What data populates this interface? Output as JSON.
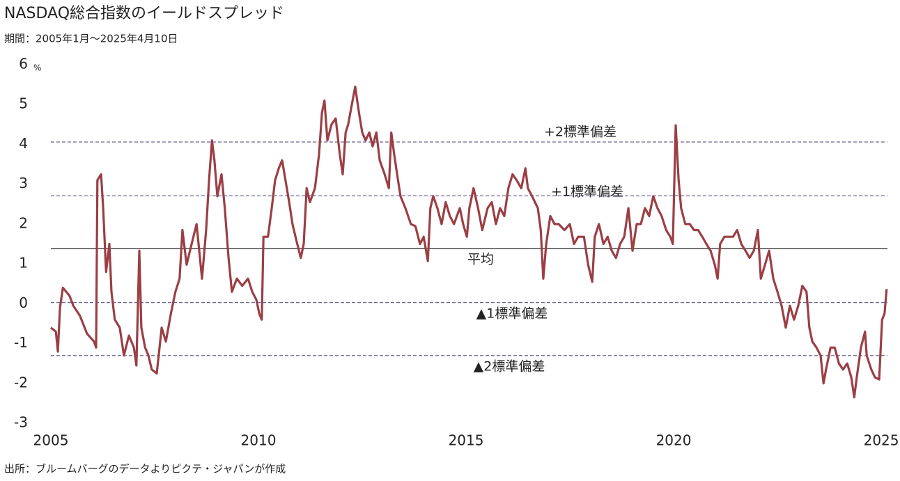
{
  "chart_data": {
    "type": "line",
    "title": "NASDAQ総合指数のイールドスプレッド",
    "subtitle": "期間：2005年1月～2025年4月10日",
    "y_unit": "%",
    "source": "出所：ブルームバーグのデータよりピクテ・ジャパンが作成",
    "xlim": [
      2005,
      2025.15
    ],
    "xticks": [
      2005,
      2010,
      2015,
      2020,
      2025
    ],
    "ylim": [
      -3,
      6
    ],
    "yticks": [
      -3,
      -2,
      -1,
      0,
      1,
      2,
      3,
      4,
      5,
      6
    ],
    "negative_tick_color": "#e00000",
    "reference_lines": [
      {
        "label": "+2標準偏差",
        "value": 4.06,
        "color": "#6a6490",
        "dashed": true
      },
      {
        "label": "+1標準偏差",
        "value": 2.71,
        "color": "#6a6490",
        "dashed": true
      },
      {
        "label": "平均",
        "value": 1.38,
        "color": "#222222",
        "dashed": false
      },
      {
        "label": "▲1標準偏差",
        "value": 0.03,
        "color": "#6a6490",
        "dashed": true
      },
      {
        "label": "▲2標準偏差",
        "value": -1.3,
        "color": "#6a6490",
        "dashed": true
      }
    ],
    "series": [
      {
        "color": "#9b3f45",
        "x": [
          2005.0,
          2005.12,
          2005.17,
          2005.22,
          2005.29,
          2005.45,
          2005.54,
          2005.7,
          2005.87,
          2006.04,
          2006.09,
          2006.12,
          2006.21,
          2006.26,
          2006.33,
          2006.41,
          2006.46,
          2006.54,
          2006.66,
          2006.76,
          2006.88,
          2007.0,
          2007.06,
          2007.13,
          2007.18,
          2007.27,
          2007.35,
          2007.43,
          2007.55,
          2007.67,
          2007.77,
          2007.89,
          2008.0,
          2008.1,
          2008.17,
          2008.27,
          2008.39,
          2008.51,
          2008.64,
          2008.74,
          2008.81,
          2008.88,
          2008.94,
          2009.01,
          2009.11,
          2009.19,
          2009.28,
          2009.36,
          2009.48,
          2009.61,
          2009.75,
          2009.85,
          2009.95,
          2010.02,
          2010.08,
          2010.12,
          2010.23,
          2010.32,
          2010.4,
          2010.49,
          2010.57,
          2010.65,
          2010.74,
          2010.82,
          2010.91,
          2011.02,
          2011.09,
          2011.16,
          2011.24,
          2011.36,
          2011.46,
          2011.53,
          2011.59,
          2011.66,
          2011.76,
          2011.86,
          2011.96,
          2012.03,
          2012.1,
          2012.16,
          2012.25,
          2012.33,
          2012.42,
          2012.5,
          2012.58,
          2012.67,
          2012.75,
          2012.84,
          2012.92,
          2013.04,
          2013.14,
          2013.2,
          2013.27,
          2013.34,
          2013.42,
          2013.54,
          2013.67,
          2013.78,
          2013.89,
          2013.98,
          2014.08,
          2014.14,
          2014.21,
          2014.31,
          2014.41,
          2014.51,
          2014.61,
          2014.71,
          2014.85,
          2014.93,
          2015.02,
          2015.08,
          2015.18,
          2015.29,
          2015.39,
          2015.52,
          2015.62,
          2015.72,
          2015.82,
          2015.92,
          2016.02,
          2016.12,
          2016.22,
          2016.33,
          2016.43,
          2016.49,
          2016.59,
          2016.73,
          2016.8,
          2016.86,
          2016.93,
          2017.03,
          2017.13,
          2017.23,
          2017.37,
          2017.5,
          2017.6,
          2017.7,
          2017.84,
          2017.94,
          2018.04,
          2018.1,
          2018.2,
          2018.31,
          2018.41,
          2018.51,
          2018.61,
          2018.71,
          2018.81,
          2018.91,
          2019.01,
          2019.11,
          2019.21,
          2019.31,
          2019.41,
          2019.51,
          2019.61,
          2019.71,
          2019.82,
          2019.92,
          2019.98,
          2020.05,
          2020.12,
          2020.18,
          2020.28,
          2020.39,
          2020.49,
          2020.59,
          2020.69,
          2020.79,
          2020.89,
          2020.99,
          2021.06,
          2021.12,
          2021.22,
          2021.33,
          2021.43,
          2021.53,
          2021.63,
          2021.73,
          2021.83,
          2021.93,
          2022.03,
          2022.1,
          2022.2,
          2022.3,
          2022.4,
          2022.5,
          2022.6,
          2022.7,
          2022.8,
          2022.9,
          2023.0,
          2023.1,
          2023.2,
          2023.27,
          2023.34,
          2023.44,
          2023.54,
          2023.61,
          2023.67,
          2023.78,
          2023.88,
          2023.98,
          2024.08,
          2024.18,
          2024.28,
          2024.35,
          2024.41,
          2024.51,
          2024.61,
          2024.65,
          2024.76,
          2024.85,
          2024.95,
          2025.02,
          2025.08,
          2025.13
        ],
        "values": [
          -0.6,
          -0.7,
          -1.2,
          -0.1,
          0.4,
          0.2,
          -0.05,
          -0.3,
          -0.75,
          -0.95,
          -1.1,
          3.1,
          3.25,
          2.4,
          0.8,
          1.5,
          0.3,
          -0.4,
          -0.6,
          -1.3,
          -0.8,
          -1.1,
          -1.55,
          1.33,
          -0.6,
          -1.1,
          -1.3,
          -1.65,
          -1.75,
          -0.6,
          -0.95,
          -0.25,
          0.3,
          0.63,
          1.85,
          0.98,
          1.5,
          2.0,
          0.63,
          1.85,
          3.1,
          4.1,
          3.6,
          2.7,
          3.25,
          2.4,
          1.15,
          0.3,
          0.63,
          0.45,
          0.63,
          0.3,
          0.1,
          -0.25,
          -0.4,
          1.68,
          1.68,
          2.4,
          3.1,
          3.4,
          3.6,
          3.1,
          2.55,
          2.0,
          1.6,
          1.15,
          1.5,
          2.9,
          2.55,
          2.9,
          3.75,
          4.8,
          5.1,
          4.1,
          4.5,
          4.65,
          3.75,
          3.25,
          4.3,
          4.5,
          5.0,
          5.45,
          4.8,
          4.3,
          4.1,
          4.3,
          3.95,
          4.3,
          3.6,
          3.25,
          2.9,
          4.3,
          3.75,
          3.25,
          2.7,
          2.4,
          2.0,
          1.95,
          1.5,
          1.68,
          1.07,
          2.4,
          2.7,
          2.4,
          2.0,
          2.55,
          2.2,
          2.0,
          2.4,
          2.0,
          1.68,
          2.4,
          2.9,
          2.4,
          1.85,
          2.4,
          2.55,
          2.0,
          2.4,
          2.2,
          2.9,
          3.25,
          3.1,
          2.9,
          3.4,
          2.9,
          2.7,
          2.4,
          1.85,
          0.63,
          1.5,
          2.2,
          2.0,
          2.0,
          1.85,
          2.0,
          1.5,
          1.68,
          1.68,
          0.98,
          0.55,
          1.68,
          2.0,
          1.5,
          1.68,
          1.33,
          1.15,
          1.5,
          1.68,
          2.4,
          1.33,
          2.0,
          2.0,
          2.4,
          2.2,
          2.7,
          2.4,
          2.2,
          1.85,
          1.68,
          1.5,
          4.48,
          3.1,
          2.4,
          2.0,
          2.0,
          1.85,
          1.85,
          1.68,
          1.5,
          1.33,
          0.98,
          0.63,
          1.5,
          1.68,
          1.68,
          1.68,
          1.85,
          1.5,
          1.33,
          1.15,
          1.33,
          1.85,
          0.63,
          0.98,
          1.33,
          0.63,
          0.3,
          -0.05,
          -0.6,
          -0.05,
          -0.4,
          -0.05,
          0.45,
          0.3,
          -0.6,
          -0.95,
          -1.1,
          -1.3,
          -2.0,
          -1.65,
          -1.1,
          -1.1,
          -1.5,
          -1.65,
          -1.5,
          -1.85,
          -2.35,
          -1.85,
          -1.1,
          -0.7,
          -1.3,
          -1.65,
          -1.85,
          -1.9,
          -0.4,
          -0.25,
          0.37
        ]
      }
    ]
  }
}
